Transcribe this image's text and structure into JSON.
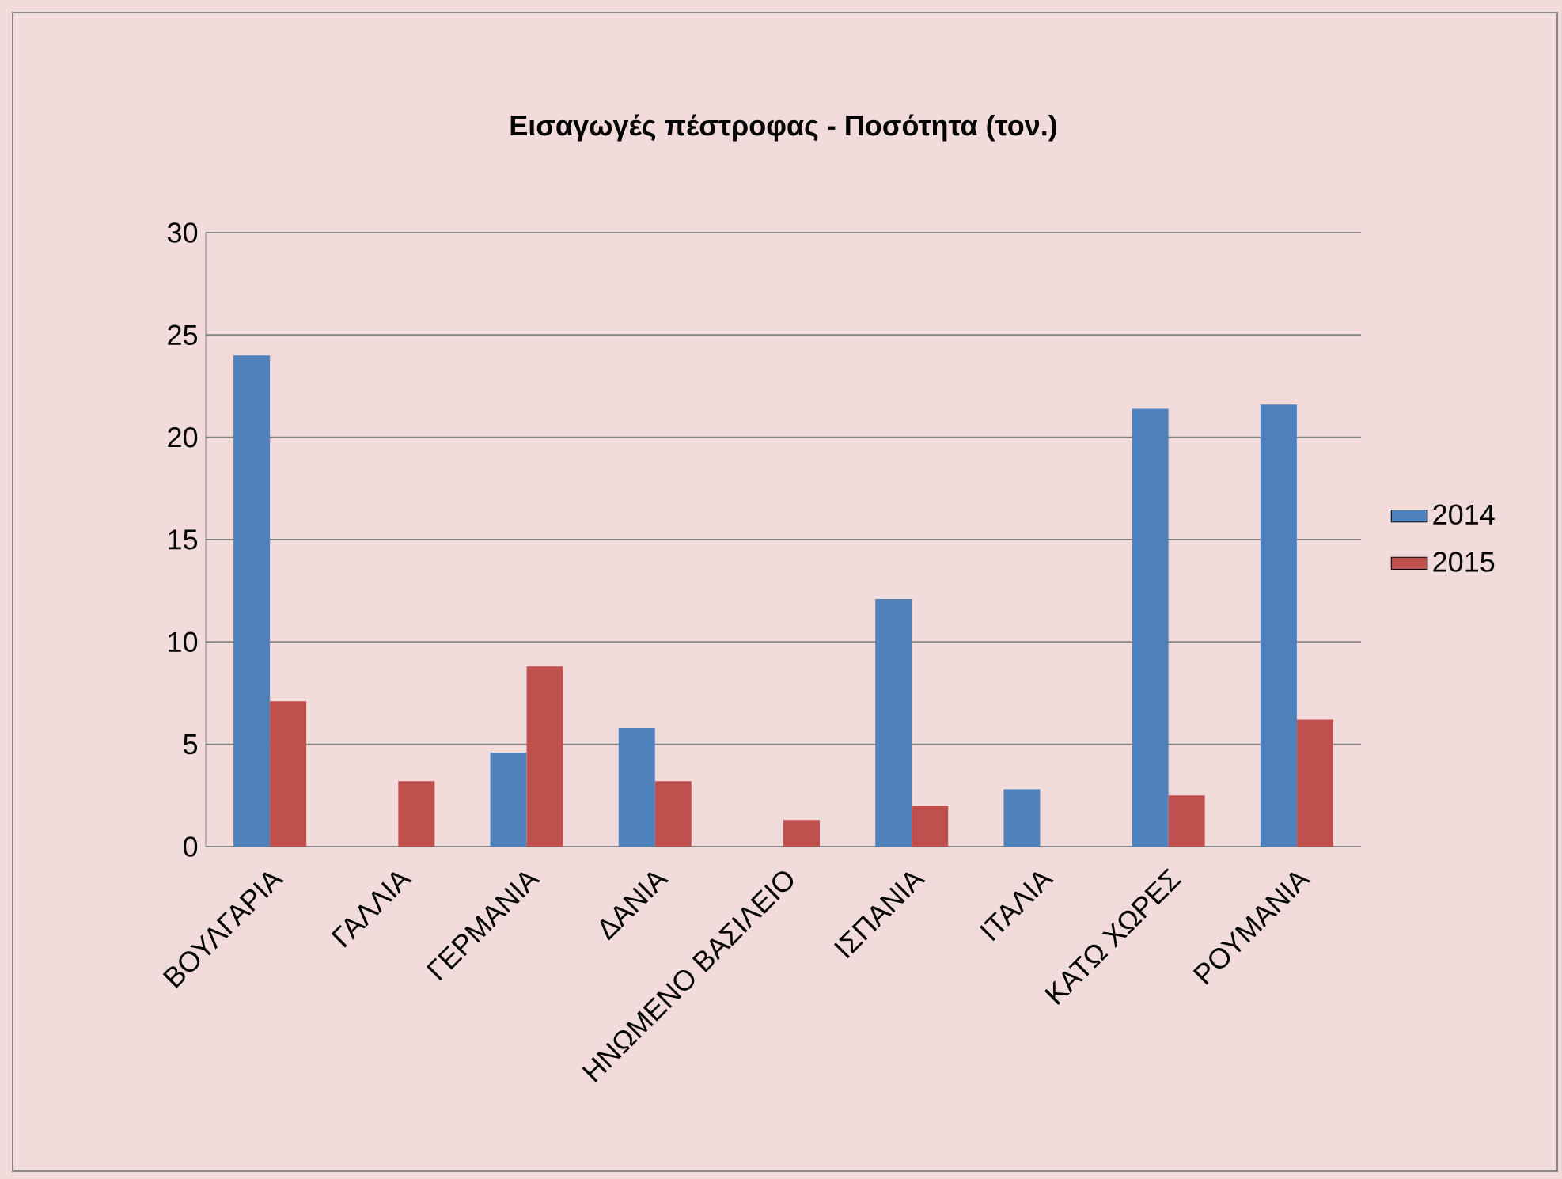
{
  "chart_data": {
    "type": "bar",
    "title": "**Εισαγωγές  πέστροφας - Ποσότητα (τον.)**",
    "categories": [
      "ΒΟΥΛΓΑΡΙΑ",
      "ΓΑΛΛΙΑ",
      "ΓΕΡΜΑΝΙΑ",
      "ΔΑΝΙΑ",
      "ΗΝΩΜΕΝΟ ΒΑΣΙΛΕΙΟ",
      "ΙΣΠΑΝΙΑ",
      "ΙΤΑΛΙΑ",
      "ΚΑΤΩ ΧΩΡΕΣ",
      "ΡΟΥΜΑΝΙΑ"
    ],
    "series": [
      {
        "name": "2014",
        "color": "#4f81bd",
        "values": [
          24.0,
          null,
          4.6,
          5.8,
          null,
          12.1,
          2.8,
          21.4,
          21.6
        ]
      },
      {
        "name": "2015",
        "color": "#c0504d",
        "values": [
          7.1,
          3.2,
          8.8,
          3.2,
          1.3,
          2.0,
          null,
          2.5,
          6.2
        ]
      }
    ],
    "ylim": [
      0,
      30
    ],
    "yticks": [
      0,
      5,
      10,
      15,
      20,
      25,
      30
    ],
    "grid": "y",
    "legend": "right"
  }
}
